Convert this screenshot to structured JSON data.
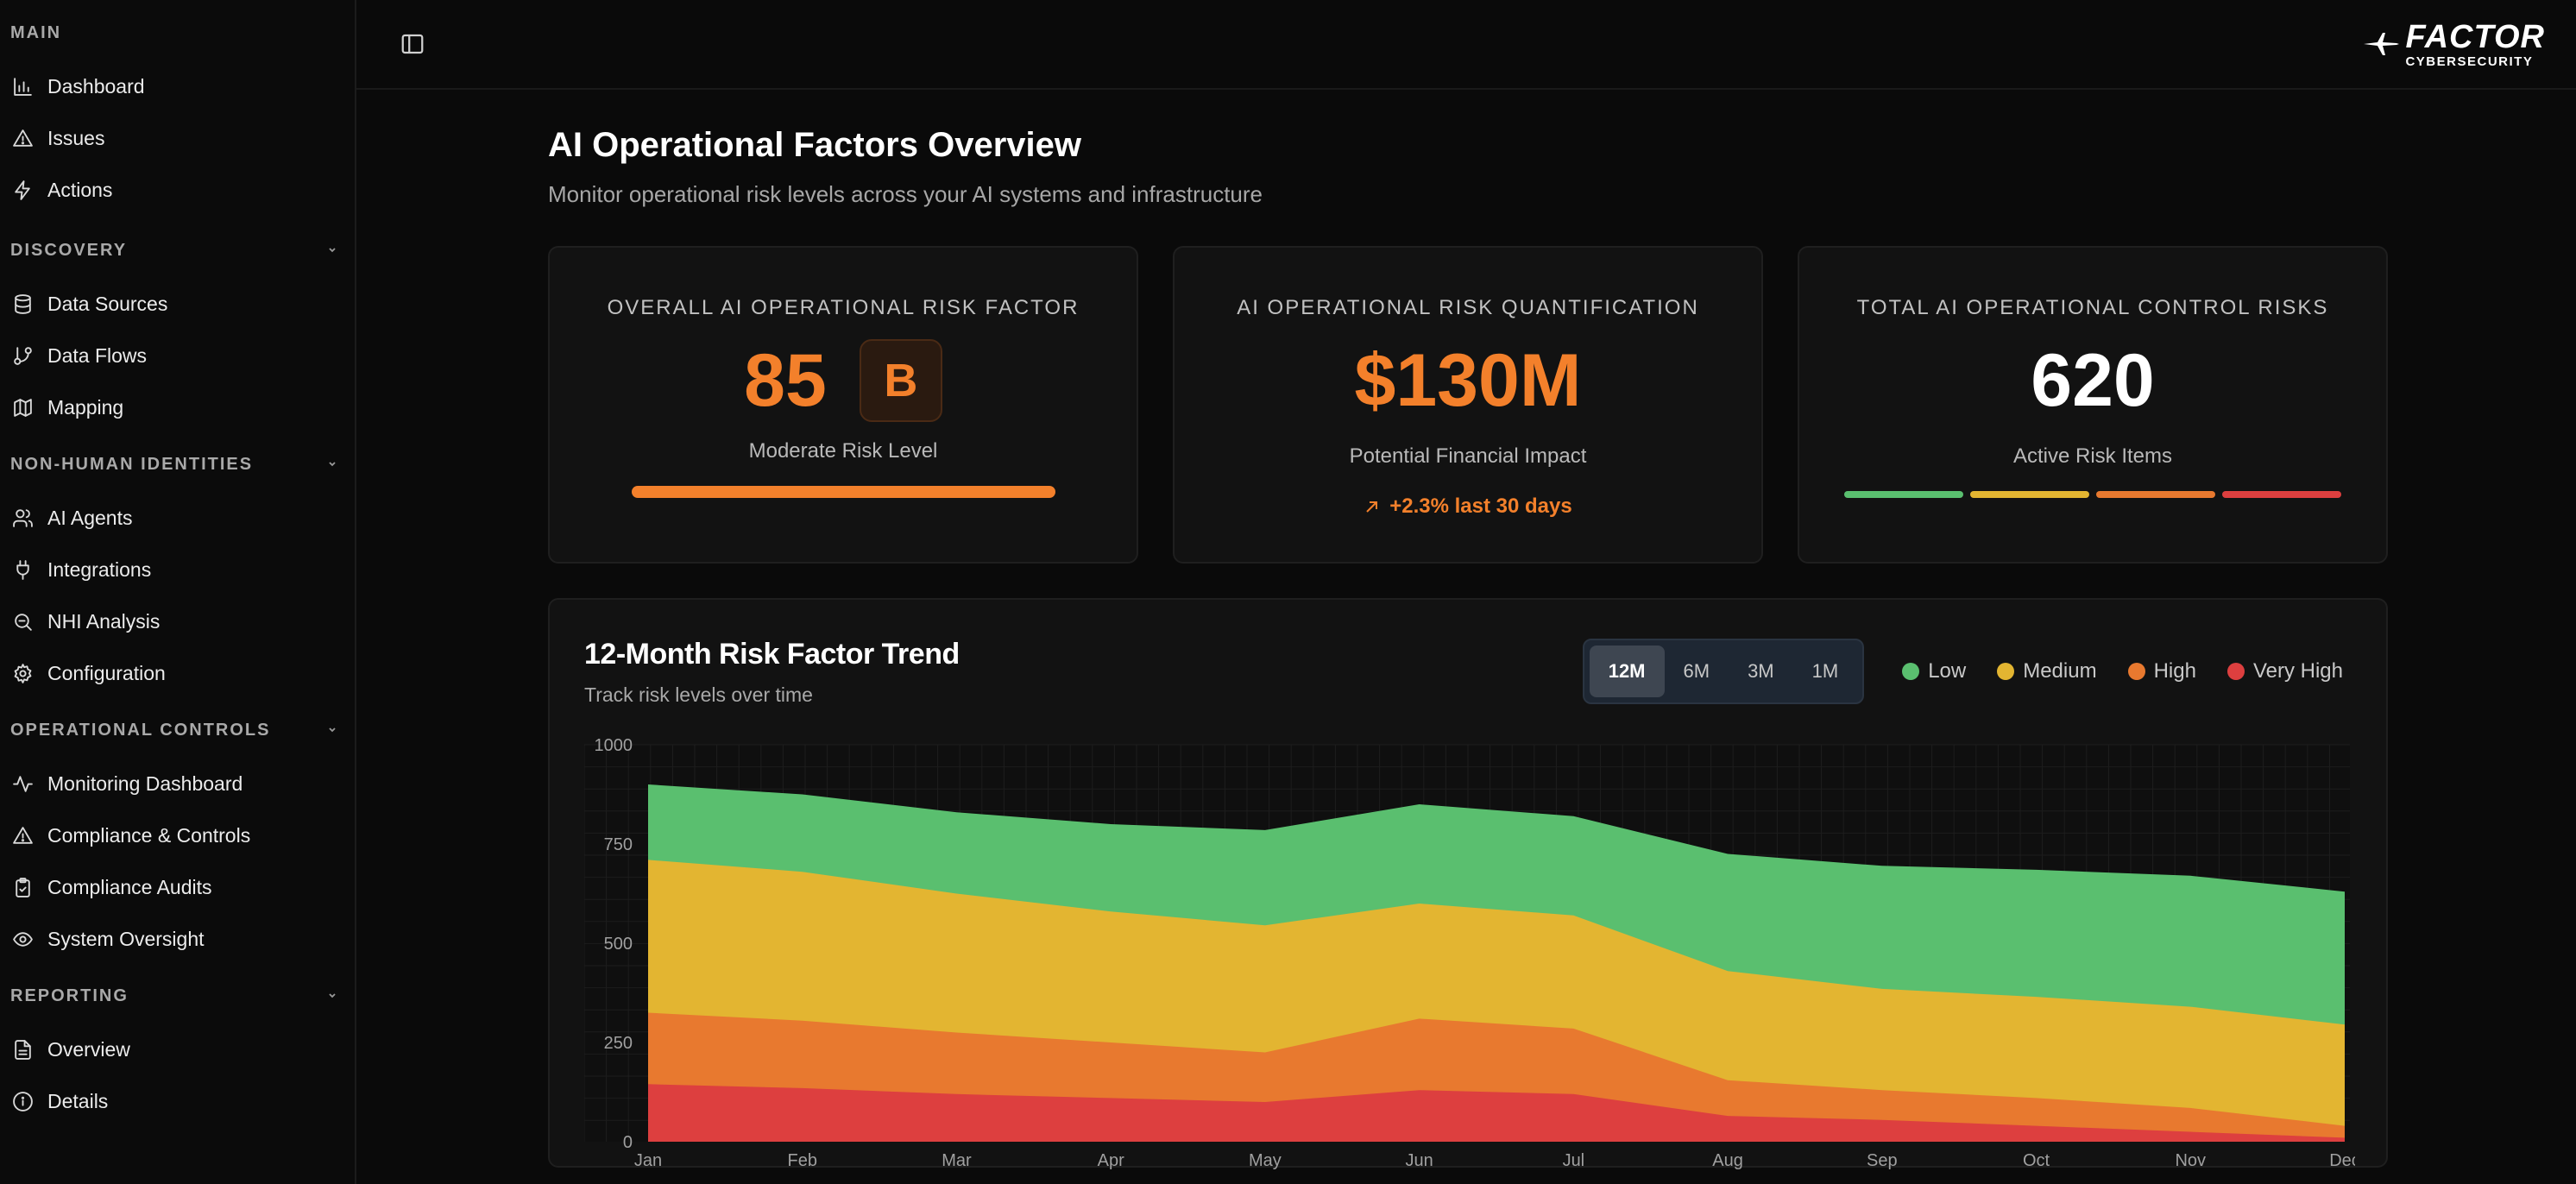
{
  "sidebar": {
    "sections": [
      {
        "title": "MAIN",
        "collapsible": false,
        "items": [
          {
            "label": "Dashboard",
            "icon": "bar-chart-icon"
          },
          {
            "label": "Issues",
            "icon": "warning-icon"
          },
          {
            "label": "Actions",
            "icon": "lightning-icon"
          }
        ]
      },
      {
        "title": "DISCOVERY",
        "collapsible": true,
        "items": [
          {
            "label": "Data Sources",
            "icon": "database-icon"
          },
          {
            "label": "Data Flows",
            "icon": "git-branch-icon"
          },
          {
            "label": "Mapping",
            "icon": "map-icon"
          }
        ]
      },
      {
        "title": "NON-HUMAN IDENTITIES",
        "collapsible": true,
        "items": [
          {
            "label": "AI Agents",
            "icon": "users-icon"
          },
          {
            "label": "Integrations",
            "icon": "plug-icon"
          },
          {
            "label": "NHI Analysis",
            "icon": "search-icon"
          },
          {
            "label": "Configuration",
            "icon": "gear-icon"
          }
        ]
      },
      {
        "title": "OPERATIONAL CONTROLS",
        "collapsible": true,
        "items": [
          {
            "label": "Monitoring Dashboard",
            "icon": "activity-icon"
          },
          {
            "label": "Compliance & Controls",
            "icon": "warning-icon"
          },
          {
            "label": "Compliance Audits",
            "icon": "clipboard-check-icon"
          },
          {
            "label": "System Oversight",
            "icon": "eye-icon"
          }
        ]
      },
      {
        "title": "REPORTING",
        "collapsible": true,
        "items": [
          {
            "label": "Overview",
            "icon": "file-text-icon"
          },
          {
            "label": "Details",
            "icon": "info-icon"
          }
        ]
      }
    ]
  },
  "header": {
    "logo_main": "FACTOR",
    "logo_sub": "CYBERSECURITY"
  },
  "page": {
    "title": "AI Operational Factors Overview",
    "subtitle": "Monitor operational risk levels across your AI systems and infrastructure"
  },
  "cards": {
    "risk_factor": {
      "label": "OVERALL AI OPERATIONAL RISK FACTOR",
      "score": "85",
      "grade": "B",
      "level": "Moderate Risk Level",
      "progress": 0.9
    },
    "quantification": {
      "label": "AI OPERATIONAL RISK QUANTIFICATION",
      "value": "$130M",
      "sub": "Potential Financial Impact",
      "trend": "+2.3% last 30 days"
    },
    "control_risks": {
      "label": "TOTAL AI OPERATIONAL CONTROL RISKS",
      "value": "620",
      "sub": "Active Risk Items"
    }
  },
  "chart_section": {
    "title": "12-Month Risk Factor Trend",
    "subtitle": "Track risk levels over time",
    "ranges": [
      "12M",
      "6M",
      "3M",
      "1M"
    ],
    "active_range": "12M"
  },
  "colors": {
    "accent": "#f3802b",
    "low": "#5abf6f",
    "medium": "#e3b531",
    "high": "#e8792f",
    "very_high": "#dd3f3f"
  },
  "chart_data": {
    "type": "area",
    "stacked": true,
    "categories": [
      "Jan",
      "Feb",
      "Mar",
      "Apr",
      "May",
      "Jun",
      "Jul",
      "Aug",
      "Sep",
      "Oct",
      "Nov",
      "Dec"
    ],
    "series": [
      {
        "name": "Very High",
        "color": "#dd3f3f",
        "values": [
          145,
          135,
          120,
          110,
          100,
          130,
          120,
          65,
          55,
          40,
          25,
          10
        ]
      },
      {
        "name": "High",
        "color": "#e8792f",
        "values": [
          180,
          170,
          155,
          140,
          125,
          180,
          165,
          90,
          75,
          70,
          60,
          30
        ]
      },
      {
        "name": "Medium",
        "color": "#e3b531",
        "values": [
          385,
          375,
          350,
          330,
          320,
          290,
          285,
          275,
          255,
          255,
          255,
          255
        ]
      },
      {
        "name": "Low",
        "color": "#5abf6f",
        "values": [
          190,
          195,
          205,
          220,
          240,
          250,
          250,
          295,
          310,
          320,
          330,
          335
        ]
      }
    ],
    "ylim": [
      0,
      1000
    ],
    "yticks": [
      0,
      250,
      500,
      750,
      1000
    ],
    "grid": true,
    "legend": "top-right"
  }
}
